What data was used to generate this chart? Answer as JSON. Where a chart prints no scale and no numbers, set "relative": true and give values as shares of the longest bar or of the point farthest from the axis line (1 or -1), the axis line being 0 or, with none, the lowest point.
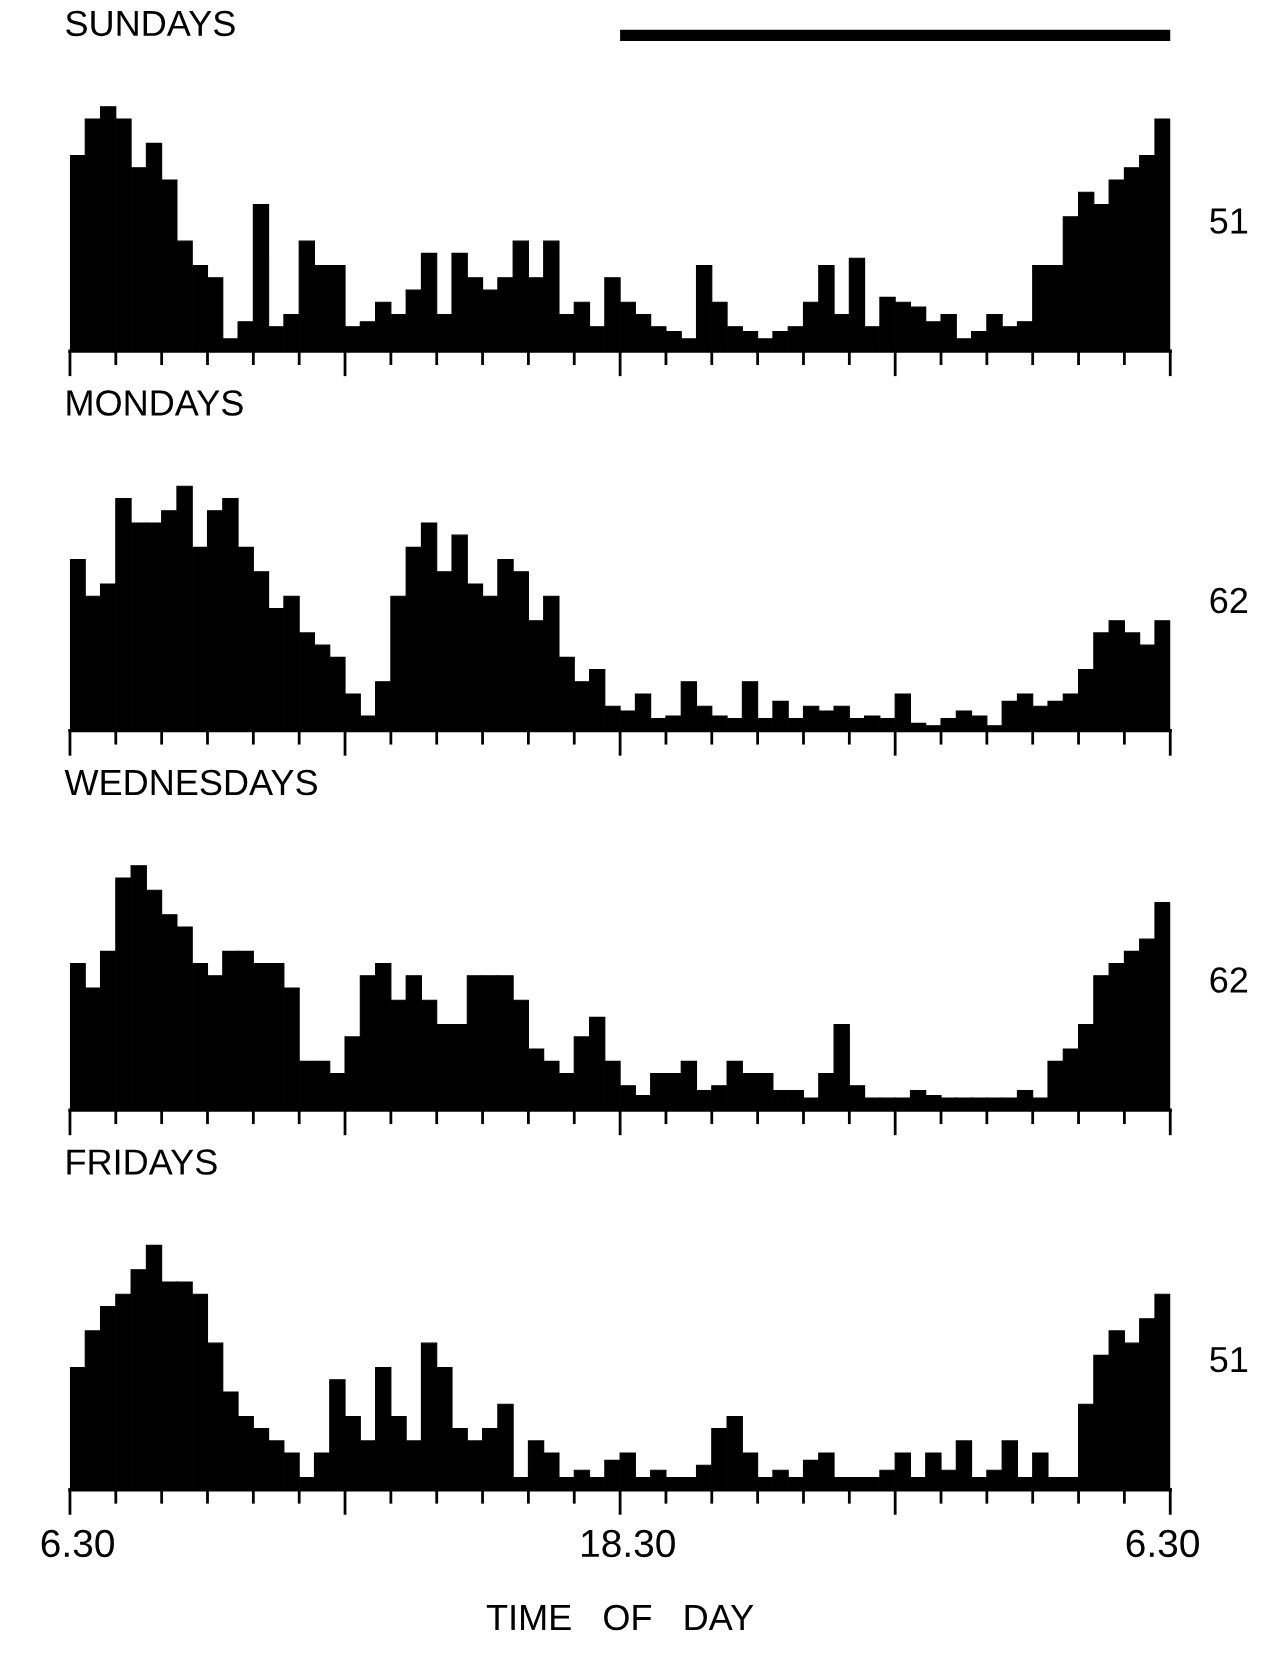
{
  "chart_data": [
    {
      "type": "bar",
      "title": "SUNDAYS",
      "relative": true,
      "color": "#000000",
      "tick_labels": false,
      "annotations": [
        "51"
      ],
      "categories": [
        "6.30",
        null,
        null,
        null,
        null,
        null,
        null,
        null,
        null,
        null,
        null,
        null,
        null,
        null,
        null,
        null,
        null,
        null,
        null,
        null,
        null,
        null,
        null,
        null,
        null,
        null,
        null,
        null,
        null,
        null,
        null,
        null,
        null,
        null,
        null,
        null,
        "18.30",
        null,
        null,
        null,
        null,
        null,
        null,
        null,
        null,
        null,
        null,
        null,
        null,
        null,
        null,
        null,
        null,
        null,
        null,
        null,
        null,
        null,
        null,
        null,
        null,
        null,
        null,
        null,
        null,
        null,
        null,
        null,
        null,
        null,
        null,
        "6.30"
      ],
      "values": [
        0.8,
        0.95,
        1.0,
        0.95,
        0.75,
        0.85,
        0.7,
        0.45,
        0.35,
        0.3,
        0.05,
        0.12,
        0.6,
        0.1,
        0.15,
        0.45,
        0.35,
        0.35,
        0.1,
        0.12,
        0.2,
        0.15,
        0.25,
        0.4,
        0.15,
        0.4,
        0.3,
        0.25,
        0.3,
        0.45,
        0.3,
        0.45,
        0.15,
        0.2,
        0.1,
        0.3,
        0.2,
        0.15,
        0.1,
        0.08,
        0.05,
        0.35,
        0.2,
        0.1,
        0.08,
        0.05,
        0.08,
        0.1,
        0.2,
        0.35,
        0.15,
        0.38,
        0.1,
        0.22,
        0.2,
        0.18,
        0.12,
        0.15,
        0.05,
        0.08,
        0.15,
        0.1,
        0.12,
        0.35,
        0.35,
        0.55,
        0.65,
        0.6,
        0.7,
        0.75,
        0.8,
        0.95
      ]
    },
    {
      "type": "bar",
      "title": "MONDAYS",
      "relative": true,
      "color": "#000000",
      "tick_labels": false,
      "annotations": [
        "62"
      ],
      "categories": [
        "6.30",
        null,
        null,
        null,
        null,
        null,
        null,
        null,
        null,
        null,
        null,
        null,
        null,
        null,
        null,
        null,
        null,
        null,
        null,
        null,
        null,
        null,
        null,
        null,
        null,
        null,
        null,
        null,
        null,
        null,
        null,
        null,
        null,
        null,
        null,
        null,
        "18.30",
        null,
        null,
        null,
        null,
        null,
        null,
        null,
        null,
        null,
        null,
        null,
        null,
        null,
        null,
        null,
        null,
        null,
        null,
        null,
        null,
        null,
        null,
        null,
        null,
        null,
        null,
        null,
        null,
        null,
        null,
        null,
        null,
        null,
        null,
        "6.30"
      ],
      "values": [
        0.7,
        0.55,
        0.6,
        0.95,
        0.85,
        0.85,
        0.9,
        1.0,
        0.75,
        0.9,
        0.95,
        0.75,
        0.65,
        0.5,
        0.55,
        0.4,
        0.35,
        0.3,
        0.15,
        0.06,
        0.2,
        0.55,
        0.75,
        0.85,
        0.65,
        0.8,
        0.6,
        0.55,
        0.7,
        0.65,
        0.45,
        0.55,
        0.3,
        0.2,
        0.25,
        0.1,
        0.08,
        0.15,
        0.05,
        0.06,
        0.2,
        0.1,
        0.06,
        0.05,
        0.2,
        0.05,
        0.12,
        0.05,
        0.1,
        0.08,
        0.1,
        0.05,
        0.06,
        0.05,
        0.15,
        0.03,
        0.02,
        0.05,
        0.08,
        0.06,
        0.02,
        0.12,
        0.15,
        0.1,
        0.12,
        0.15,
        0.25,
        0.4,
        0.45,
        0.4,
        0.35,
        0.45
      ]
    },
    {
      "type": "bar",
      "title": "WEDNESDAYS",
      "relative": true,
      "color": "#000000",
      "tick_labels": false,
      "annotations": [
        "62"
      ],
      "categories": [
        "6.30",
        null,
        null,
        null,
        null,
        null,
        null,
        null,
        null,
        null,
        null,
        null,
        null,
        null,
        null,
        null,
        null,
        null,
        null,
        null,
        null,
        null,
        null,
        null,
        null,
        null,
        null,
        null,
        null,
        null,
        null,
        null,
        null,
        null,
        null,
        null,
        "18.30",
        null,
        null,
        null,
        null,
        null,
        null,
        null,
        null,
        null,
        null,
        null,
        null,
        null,
        null,
        null,
        null,
        null,
        null,
        null,
        null,
        null,
        null,
        null,
        null,
        null,
        null,
        null,
        null,
        null,
        null,
        null,
        null,
        null,
        null,
        "6.30"
      ],
      "values": [
        0.6,
        0.5,
        0.65,
        0.95,
        1.0,
        0.9,
        0.8,
        0.75,
        0.6,
        0.55,
        0.65,
        0.65,
        0.6,
        0.6,
        0.5,
        0.2,
        0.2,
        0.15,
        0.3,
        0.55,
        0.6,
        0.45,
        0.55,
        0.45,
        0.35,
        0.35,
        0.55,
        0.55,
        0.55,
        0.45,
        0.25,
        0.2,
        0.15,
        0.3,
        0.38,
        0.2,
        0.1,
        0.06,
        0.15,
        0.15,
        0.2,
        0.08,
        0.1,
        0.2,
        0.15,
        0.15,
        0.08,
        0.08,
        0.05,
        0.15,
        0.35,
        0.1,
        0.05,
        0.05,
        0.05,
        0.08,
        0.06,
        0.05,
        0.05,
        0.05,
        0.05,
        0.05,
        0.08,
        0.05,
        0.2,
        0.25,
        0.35,
        0.55,
        0.6,
        0.65,
        0.7,
        0.85
      ]
    },
    {
      "type": "bar",
      "title": "FRIDAYS",
      "relative": true,
      "color": "#000000",
      "tick_labels": "x",
      "xlabel": "TIME   OF   DAY",
      "annotations": [
        "51"
      ],
      "categories": [
        "6.30",
        null,
        null,
        null,
        null,
        null,
        null,
        null,
        null,
        null,
        null,
        null,
        null,
        null,
        null,
        null,
        null,
        null,
        null,
        null,
        null,
        null,
        null,
        null,
        null,
        null,
        null,
        null,
        null,
        null,
        null,
        null,
        null,
        null,
        null,
        null,
        "18.30",
        null,
        null,
        null,
        null,
        null,
        null,
        null,
        null,
        null,
        null,
        null,
        null,
        null,
        null,
        null,
        null,
        null,
        null,
        null,
        null,
        null,
        null,
        null,
        null,
        null,
        null,
        null,
        null,
        null,
        null,
        null,
        null,
        null,
        null,
        "6.30"
      ],
      "values": [
        0.5,
        0.65,
        0.75,
        0.8,
        0.9,
        1.0,
        0.85,
        0.85,
        0.8,
        0.6,
        0.4,
        0.3,
        0.25,
        0.2,
        0.15,
        0.05,
        0.15,
        0.45,
        0.3,
        0.2,
        0.5,
        0.3,
        0.2,
        0.6,
        0.5,
        0.25,
        0.2,
        0.25,
        0.35,
        0.05,
        0.2,
        0.15,
        0.05,
        0.08,
        0.05,
        0.12,
        0.15,
        0.05,
        0.08,
        0.05,
        0.05,
        0.1,
        0.25,
        0.3,
        0.15,
        0.05,
        0.08,
        0.05,
        0.12,
        0.15,
        0.05,
        0.05,
        0.05,
        0.08,
        0.15,
        0.05,
        0.15,
        0.08,
        0.2,
        0.05,
        0.08,
        0.2,
        0.05,
        0.15,
        0.05,
        0.05,
        0.35,
        0.55,
        0.65,
        0.6,
        0.7,
        0.8
      ]
    }
  ]
}
